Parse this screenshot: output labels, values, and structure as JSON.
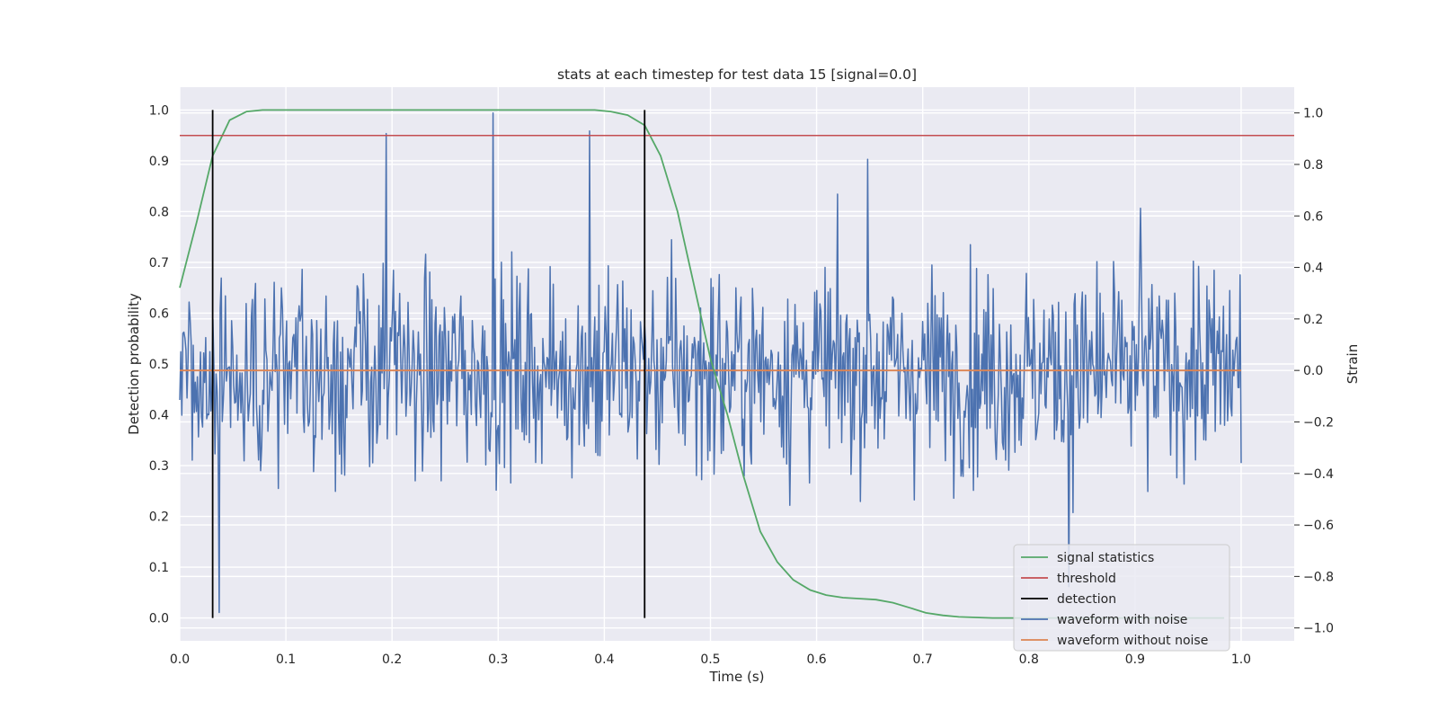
{
  "chart_data": {
    "type": "line",
    "title": "stats at each timestep for test data 15 [signal=0.0]",
    "xlabel": "Time (s)",
    "ylabel": "Detection probability",
    "y2label": "Strain",
    "xlim": [
      0.0,
      1.05
    ],
    "ylim": [
      -0.045,
      1.045
    ],
    "y2lim": [
      -1.05,
      1.1
    ],
    "xticks": [
      "0.0",
      "0.1",
      "0.2",
      "0.3",
      "0.4",
      "0.5",
      "0.6",
      "0.7",
      "0.8",
      "0.9",
      "1.0"
    ],
    "yticks": [
      "0.0",
      "0.1",
      "0.2",
      "0.3",
      "0.4",
      "0.5",
      "0.6",
      "0.7",
      "0.8",
      "0.9",
      "1.0"
    ],
    "y2ticks": [
      "−1.0",
      "−0.8",
      "−0.6",
      "−0.4",
      "−0.2",
      "0.0",
      "0.2",
      "0.4",
      "0.6",
      "0.8",
      "1.0"
    ],
    "grid": true,
    "legend_position": "lower right",
    "legend": [
      {
        "label": "signal statistics",
        "color": "#55a868"
      },
      {
        "label": "threshold",
        "color": "#c44e52"
      },
      {
        "label": "detection",
        "color": "#000000"
      },
      {
        "label": "waveform with noise",
        "color": "#4c72b0"
      },
      {
        "label": "waveform without noise",
        "color": "#dd8452"
      }
    ],
    "signal_statistics": {
      "x": [
        0.0,
        0.016,
        0.031,
        0.047,
        0.063,
        0.078,
        0.094,
        0.125,
        0.188,
        0.25,
        0.313,
        0.375,
        0.391,
        0.406,
        0.422,
        0.438,
        0.453,
        0.469,
        0.484,
        0.5,
        0.516,
        0.531,
        0.547,
        0.563,
        0.578,
        0.594,
        0.609,
        0.625,
        0.641,
        0.656,
        0.672,
        0.688,
        0.703,
        0.719,
        0.734,
        0.75,
        0.766,
        0.781,
        0.797,
        0.813,
        0.828,
        0.844,
        0.859,
        0.875,
        0.891,
        0.906,
        0.922,
        0.938,
        0.953,
        0.969,
        0.984
      ],
      "y": [
        0.65,
        0.78,
        0.91,
        0.98,
        0.997,
        1.0,
        1.0,
        1.0,
        1.0,
        1.0,
        1.0,
        1.0,
        1.0,
        0.997,
        0.99,
        0.97,
        0.91,
        0.8,
        0.66,
        0.51,
        0.4,
        0.28,
        0.17,
        0.11,
        0.075,
        0.055,
        0.045,
        0.04,
        0.038,
        0.036,
        0.03,
        0.02,
        0.01,
        0.005,
        0.002,
        0.001,
        0.0,
        0.0,
        0.0,
        0.0,
        0.0,
        0.0,
        0.0,
        0.0,
        0.0,
        0.0,
        0.0,
        0.0,
        0.0,
        0.0,
        0.0
      ]
    },
    "threshold": {
      "y": 0.95
    },
    "detections": {
      "x": [
        0.031,
        0.438
      ]
    },
    "waveform_without_noise": {
      "y2": 0.0
    },
    "waveform_with_noise": {
      "x_start": 0.0,
      "x_end": 1.0,
      "n_points": 1024,
      "approx_range": [
        -0.94,
        1.0
      ],
      "notable_peaks": [
        {
          "x": 0.195,
          "y2": 0.92
        },
        {
          "x": 0.295,
          "y2": 1.0
        },
        {
          "x": 0.386,
          "y2": 0.93
        },
        {
          "x": 0.648,
          "y2": 0.82
        },
        {
          "x": 0.905,
          "y2": 0.63
        },
        {
          "x": 0.037,
          "y2": -0.94
        },
        {
          "x": 0.838,
          "y2": -0.84
        }
      ]
    }
  }
}
